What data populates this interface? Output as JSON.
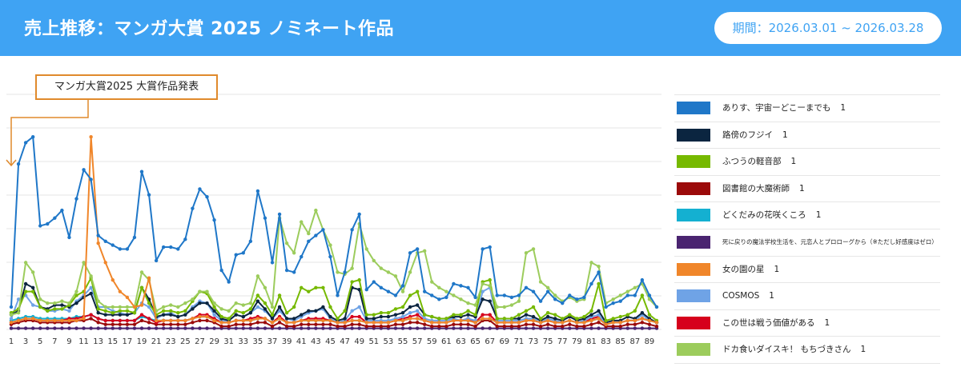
{
  "header": {
    "title": "売上推移：マンガ大賞 2025 ノミネート作品",
    "period": "期間：2026.03.01 ~ 2026.03.28"
  },
  "annotation": "マンガ大賞2025  大賞作品発表",
  "colors": {
    "header_bg": "#3fa3f3",
    "annotation_border": "#e08a2c"
  },
  "chart_data": {
    "type": "line",
    "x_tick_labels": [
      "1",
      "3",
      "5",
      "7",
      "9",
      "11",
      "13",
      "15",
      "17",
      "19",
      "21",
      "23",
      "25",
      "27",
      "29",
      "31",
      "33",
      "35",
      "37",
      "39",
      "41",
      "43",
      "45",
      "47",
      "49",
      "51",
      "53",
      "55",
      "57",
      "59",
      "61",
      "63",
      "65",
      "67",
      "69",
      "71",
      "73",
      "75",
      "77",
      "79",
      "81",
      "83",
      "85",
      "87",
      "89"
    ],
    "xlim": [
      1,
      90
    ],
    "ylim": [
      0,
      100
    ],
    "grid": true,
    "annotation_x": 1,
    "legend_position": "right",
    "series": [
      {
        "name": "ありす、宇宙ーどこーまでも",
        "count": "1",
        "color": "#1f77c8",
        "values": [
          12,
          86,
          97,
          100,
          54,
          55,
          58,
          62,
          48,
          68,
          83,
          78,
          49,
          46,
          44,
          42,
          42,
          48,
          82,
          70,
          36,
          43,
          43,
          42,
          47,
          63,
          73,
          69,
          57,
          31,
          25,
          39,
          40,
          46,
          72,
          58,
          35,
          60,
          31,
          30,
          38,
          46,
          49,
          52,
          38,
          18,
          30,
          52,
          60,
          21,
          25,
          22,
          20,
          18,
          23,
          40,
          42,
          20,
          18,
          16,
          17,
          24,
          23,
          22,
          17,
          42,
          43,
          18,
          18,
          17,
          18,
          22,
          20,
          15,
          20,
          16,
          14,
          18,
          16,
          17,
          24,
          30,
          12,
          14,
          15,
          18,
          18,
          26,
          18,
          12
        ]
      },
      {
        "name": "路傍のフジイ",
        "count": "1",
        "color": "#0b2540",
        "values": [
          8,
          10,
          24,
          22,
          12,
          11,
          13,
          13,
          12,
          14,
          17,
          19,
          9,
          8,
          8,
          8,
          8,
          9,
          22,
          16,
          7,
          8,
          8,
          7,
          8,
          11,
          14,
          14,
          10,
          6,
          5,
          8,
          7,
          9,
          15,
          11,
          6,
          12,
          6,
          6,
          8,
          10,
          10,
          12,
          7,
          5,
          6,
          22,
          21,
          6,
          6,
          7,
          7,
          8,
          9,
          12,
          13,
          8,
          7,
          6,
          6,
          7,
          7,
          8,
          7,
          16,
          15,
          6,
          6,
          6,
          6,
          8,
          7,
          5,
          7,
          6,
          5,
          7,
          5,
          6,
          8,
          10,
          4,
          5,
          5,
          7,
          6,
          9,
          6,
          4
        ]
      },
      {
        "name": "ふつうの軽音部",
        "count": "1",
        "color": "#76b900",
        "values": [
          9,
          11,
          20,
          20,
          12,
          10,
          11,
          11,
          13,
          18,
          20,
          27,
          11,
          10,
          9,
          10,
          10,
          9,
          22,
          14,
          8,
          10,
          10,
          9,
          10,
          15,
          20,
          19,
          12,
          7,
          6,
          10,
          9,
          11,
          18,
          14,
          8,
          18,
          9,
          12,
          22,
          20,
          22,
          22,
          12,
          6,
          10,
          25,
          26,
          8,
          8,
          9,
          9,
          11,
          12,
          18,
          20,
          8,
          7,
          6,
          6,
          8,
          8,
          10,
          8,
          25,
          26,
          6,
          6,
          6,
          8,
          10,
          12,
          6,
          9,
          8,
          6,
          8,
          6,
          7,
          10,
          24,
          5,
          6,
          7,
          8,
          10,
          18,
          8,
          5
        ]
      },
      {
        "name": "図書館の大魔術師",
        "count": "1",
        "color": "#9b0a0a",
        "values": [
          3,
          4,
          5,
          5,
          4,
          4,
          4,
          4,
          4,
          5,
          5,
          6,
          4,
          3,
          3,
          3,
          3,
          3,
          5,
          4,
          3,
          3,
          3,
          3,
          3,
          4,
          5,
          5,
          4,
          2,
          2,
          3,
          3,
          3,
          4,
          4,
          2,
          4,
          2,
          2,
          3,
          3,
          3,
          3,
          3,
          2,
          2,
          3,
          3,
          2,
          2,
          2,
          2,
          3,
          3,
          4,
          4,
          3,
          2,
          2,
          2,
          3,
          3,
          3,
          2,
          5,
          5,
          2,
          2,
          2,
          2,
          3,
          3,
          2,
          3,
          2,
          2,
          3,
          2,
          2,
          3,
          4,
          2,
          2,
          2,
          3,
          3,
          4,
          3,
          2
        ]
      },
      {
        "name": "どくだみの花咲くころ",
        "count": "1",
        "color": "#14b0d1",
        "values": [
          5,
          6,
          7,
          7,
          6,
          6,
          6,
          6,
          6,
          7,
          7,
          8,
          6,
          5,
          5,
          5,
          5,
          5,
          7,
          6,
          5,
          5,
          5,
          5,
          5,
          6,
          7,
          7,
          6,
          4,
          4,
          5,
          5,
          5,
          6,
          6,
          4,
          6,
          4,
          4,
          5,
          5,
          5,
          5,
          5,
          4,
          4,
          5,
          5,
          4,
          4,
          4,
          4,
          5,
          5,
          6,
          6,
          5,
          4,
          4,
          4,
          5,
          5,
          5,
          4,
          6,
          6,
          4,
          4,
          4,
          4,
          5,
          5,
          4,
          5,
          4,
          4,
          5,
          4,
          4,
          5,
          6,
          3,
          4,
          4,
          5,
          5,
          6,
          5,
          4
        ]
      },
      {
        "name": "死に戻りの魔法学校生活を、元恋人とプロローグから（※ただし好感度はゼロ）",
        "count": "",
        "color": "#4a2470",
        "values": [
          1,
          1,
          1,
          1,
          1,
          1,
          1,
          1,
          1,
          1,
          1,
          1,
          1,
          1,
          1,
          1,
          1,
          1,
          1,
          1,
          1,
          1,
          1,
          1,
          1,
          1,
          1,
          1,
          1,
          1,
          1,
          1,
          1,
          1,
          1,
          1,
          1,
          1,
          1,
          1,
          1,
          1,
          1,
          1,
          1,
          1,
          1,
          1,
          1,
          1,
          1,
          1,
          1,
          1,
          1,
          1,
          1,
          1,
          1,
          1,
          1,
          1,
          1,
          1,
          1,
          1,
          1,
          1,
          1,
          1,
          1,
          1,
          1,
          1,
          1,
          1,
          1,
          1,
          1,
          1,
          1,
          1,
          1,
          1,
          1,
          1,
          1,
          1,
          1,
          1
        ]
      },
      {
        "name": "女の園の星",
        "count": "1",
        "color": "#f0862a",
        "values": [
          4,
          5,
          6,
          6,
          5,
          5,
          5,
          5,
          5,
          5,
          6,
          100,
          45,
          35,
          26,
          20,
          17,
          12,
          13,
          27,
          5,
          5,
          5,
          5,
          5,
          6,
          7,
          7,
          5,
          4,
          4,
          5,
          5,
          5,
          6,
          6,
          4,
          6,
          4,
          4,
          5,
          5,
          5,
          5,
          5,
          4,
          4,
          5,
          5,
          4,
          4,
          4,
          4,
          5,
          5,
          6,
          6,
          5,
          4,
          4,
          4,
          5,
          5,
          5,
          4,
          6,
          6,
          4,
          4,
          4,
          4,
          5,
          5,
          4,
          5,
          4,
          4,
          5,
          4,
          4,
          5,
          6,
          3,
          4,
          4,
          5,
          5,
          6,
          5,
          4
        ]
      },
      {
        "name": "COSMOS",
        "count": "1",
        "color": "#6fa3e6",
        "values": [
          6,
          16,
          18,
          13,
          12,
          10,
          10,
          11,
          10,
          15,
          18,
          22,
          12,
          12,
          10,
          9,
          8,
          9,
          14,
          12,
          6,
          8,
          9,
          7,
          8,
          12,
          15,
          14,
          8,
          5,
          5,
          8,
          7,
          9,
          12,
          10,
          6,
          10,
          6,
          5,
          7,
          9,
          10,
          11,
          6,
          4,
          5,
          10,
          12,
          5,
          5,
          5,
          5,
          6,
          7,
          9,
          10,
          6,
          5,
          5,
          5,
          6,
          5,
          6,
          5,
          20,
          22,
          5,
          5,
          5,
          5,
          6,
          6,
          4,
          6,
          5,
          4,
          5,
          4,
          5,
          7,
          8,
          3,
          4,
          4,
          5,
          5,
          8,
          5,
          4
        ]
      },
      {
        "name": "この世は戦う価値がある",
        "count": "1",
        "color": "#d6001c",
        "values": [
          4,
          5,
          6,
          6,
          5,
          5,
          5,
          5,
          6,
          6,
          7,
          8,
          6,
          5,
          5,
          5,
          5,
          5,
          8,
          6,
          4,
          5,
          5,
          5,
          5,
          6,
          8,
          8,
          6,
          4,
          4,
          5,
          5,
          6,
          7,
          6,
          4,
          7,
          4,
          4,
          5,
          6,
          6,
          6,
          5,
          4,
          4,
          7,
          7,
          4,
          4,
          4,
          4,
          5,
          6,
          7,
          8,
          5,
          4,
          4,
          4,
          5,
          5,
          6,
          4,
          8,
          8,
          4,
          4,
          4,
          4,
          5,
          5,
          4,
          5,
          4,
          4,
          5,
          4,
          4,
          6,
          7,
          3,
          4,
          4,
          5,
          5,
          6,
          5,
          4
        ]
      },
      {
        "name": "ドカ食いダイスキ！ もちづきさん",
        "count": "1",
        "color": "#9ccc5c",
        "values": [
          8,
          9,
          35,
          30,
          16,
          14,
          14,
          15,
          14,
          20,
          35,
          28,
          15,
          12,
          12,
          12,
          12,
          12,
          30,
          26,
          10,
          12,
          13,
          12,
          14,
          16,
          20,
          20,
          14,
          11,
          10,
          14,
          13,
          14,
          28,
          22,
          12,
          58,
          45,
          40,
          56,
          50,
          62,
          52,
          44,
          30,
          29,
          32,
          55,
          42,
          36,
          32,
          30,
          28,
          20,
          30,
          40,
          41,
          25,
          22,
          20,
          18,
          16,
          14,
          13,
          24,
          23,
          12,
          12,
          13,
          15,
          40,
          42,
          25,
          22,
          18,
          15,
          17,
          15,
          16,
          35,
          33,
          14,
          16,
          18,
          20,
          22,
          24,
          16,
          12
        ]
      }
    ]
  }
}
